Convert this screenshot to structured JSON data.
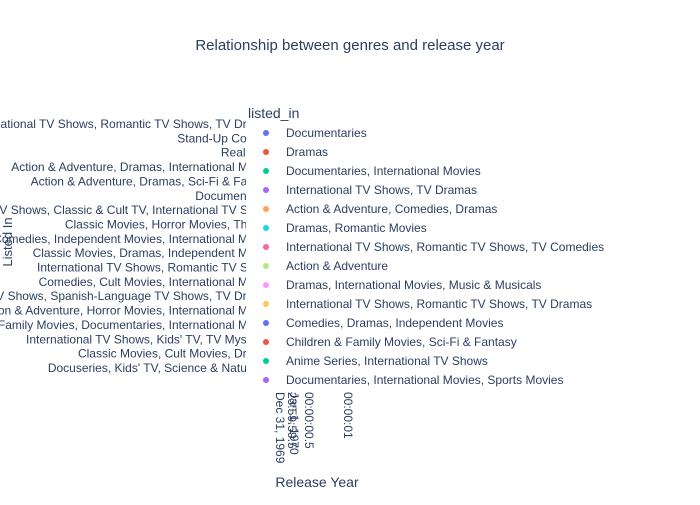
{
  "chart_data": {
    "type": "scatter",
    "title": "Relationship between genres and release year",
    "xlabel": "Release Year",
    "ylabel": "Listed In",
    "legend_title": "listed_in",
    "legend_position": "right",
    "x_tick_labels": [
      "Dec 31, 1969\n23:59:59.5",
      "Jan 1, 1970",
      "00:00:00.5",
      "00:00:01"
    ],
    "y_tick_labels": [
      "International TV Shows, Romantic TV Shows, TV Dramas",
      "Stand-Up Comedy",
      "Reality TV",
      "Action & Adventure, Dramas, International Movies",
      "Action & Adventure, Dramas, Sci-Fi & Fantasy",
      "Documentaries",
      "British TV Shows, Classic & Cult TV, International TV Shows",
      "Classic Movies, Horror Movies, Thrillers",
      "Comedies, Independent Movies, International Movies",
      "Classic Movies, Dramas, Independent Movies",
      "International TV Shows, Romantic TV Shows",
      "Comedies, Cult Movies, International Movies",
      "International TV Shows, Spanish-Language TV Shows, TV Dramas",
      "Action & Adventure, Horror Movies, International Movies",
      "Children & Family Movies, Documentaries, International Movies",
      "International TV Shows, Kids' TV, TV Mysteries",
      "Classic Movies, Cult Movies, Dramas",
      "Docuseries, Kids' TV, Science & Nature TV"
    ],
    "series": [
      {
        "name": "Documentaries",
        "color": "#636efa"
      },
      {
        "name": "Dramas",
        "color": "#EF553B"
      },
      {
        "name": "Documentaries, International Movies",
        "color": "#00cc96"
      },
      {
        "name": "International TV Shows, TV Dramas",
        "color": "#ab63fa"
      },
      {
        "name": "Action & Adventure, Comedies, Dramas",
        "color": "#FFA15A"
      },
      {
        "name": "Dramas, Romantic Movies",
        "color": "#19d3f3"
      },
      {
        "name": "International TV Shows, Romantic TV Shows, TV Comedies",
        "color": "#FF6692"
      },
      {
        "name": "Action & Adventure",
        "color": "#B6E880"
      },
      {
        "name": "Dramas, International Movies, Music & Musicals",
        "color": "#FF97FF"
      },
      {
        "name": "International TV Shows, Romantic TV Shows, TV Dramas",
        "color": "#FECB52"
      },
      {
        "name": "Comedies, Dramas, Independent Movies",
        "color": "#636efa"
      },
      {
        "name": "Children & Family Movies, Sci-Fi & Fantasy",
        "color": "#EF553B"
      },
      {
        "name": "Anime Series, International TV Shows",
        "color": "#00cc96"
      },
      {
        "name": "Documentaries, International Movies, Sports Movies",
        "color": "#ab63fa"
      }
    ]
  }
}
